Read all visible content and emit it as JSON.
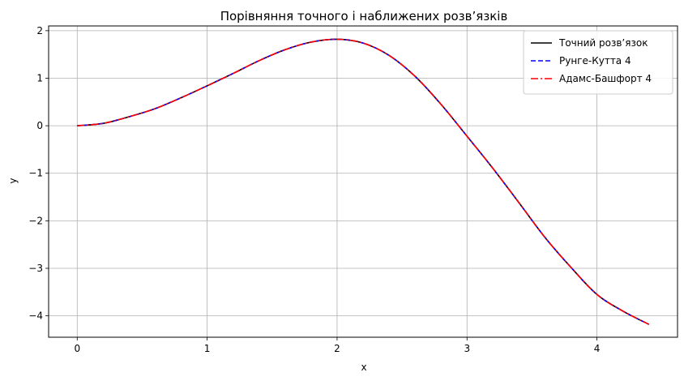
{
  "chart_data": {
    "type": "line",
    "title": "Порівняння точного і наближених розв’язків",
    "xlabel": "x",
    "ylabel": "y",
    "xlim": [
      -0.22,
      4.62
    ],
    "ylim": [
      -4.45,
      2.1
    ],
    "xticks": [
      0,
      1,
      2,
      3,
      4
    ],
    "xtick_labels": [
      "0",
      "1",
      "2",
      "3",
      "4"
    ],
    "yticks": [
      2,
      1,
      0,
      -1,
      -2,
      -3,
      -4
    ],
    "ytick_labels": [
      "2",
      "1",
      "0",
      "−1",
      "−2",
      "−3",
      "−4"
    ],
    "grid": true,
    "legend_position": "top-right",
    "x": [
      0,
      0.2,
      0.4,
      0.6,
      0.8,
      1.0,
      1.2,
      1.4,
      1.6,
      1.8,
      2.0,
      2.2,
      2.4,
      2.6,
      2.8,
      3.0,
      3.2,
      3.4,
      3.6,
      3.8,
      4.0,
      4.2,
      4.4
    ],
    "series": [
      {
        "name": "Точний розв’язок",
        "color": "#000000",
        "dash": "solid",
        "values": [
          0.0,
          0.05,
          0.19,
          0.36,
          0.59,
          0.84,
          1.1,
          1.37,
          1.6,
          1.76,
          1.82,
          1.74,
          1.48,
          1.04,
          0.45,
          -0.22,
          -0.9,
          -1.62,
          -2.35,
          -2.98,
          -3.55,
          -3.9,
          -4.18
        ]
      },
      {
        "name": "Рунге-Кутта 4",
        "color": "#0000ff",
        "dash": "dashed",
        "values": [
          0.0,
          0.05,
          0.19,
          0.36,
          0.59,
          0.84,
          1.1,
          1.37,
          1.6,
          1.76,
          1.82,
          1.74,
          1.48,
          1.04,
          0.45,
          -0.22,
          -0.9,
          -1.62,
          -2.35,
          -2.98,
          -3.55,
          -3.9,
          -4.18
        ]
      },
      {
        "name": "Адамс-Башфорт 4",
        "color": "#ff0000",
        "dash": "dashdot",
        "values": [
          0.0,
          0.05,
          0.19,
          0.36,
          0.59,
          0.84,
          1.1,
          1.37,
          1.6,
          1.76,
          1.82,
          1.74,
          1.48,
          1.04,
          0.45,
          -0.22,
          -0.9,
          -1.62,
          -2.35,
          -2.98,
          -3.55,
          -3.9,
          -4.18
        ]
      }
    ]
  }
}
